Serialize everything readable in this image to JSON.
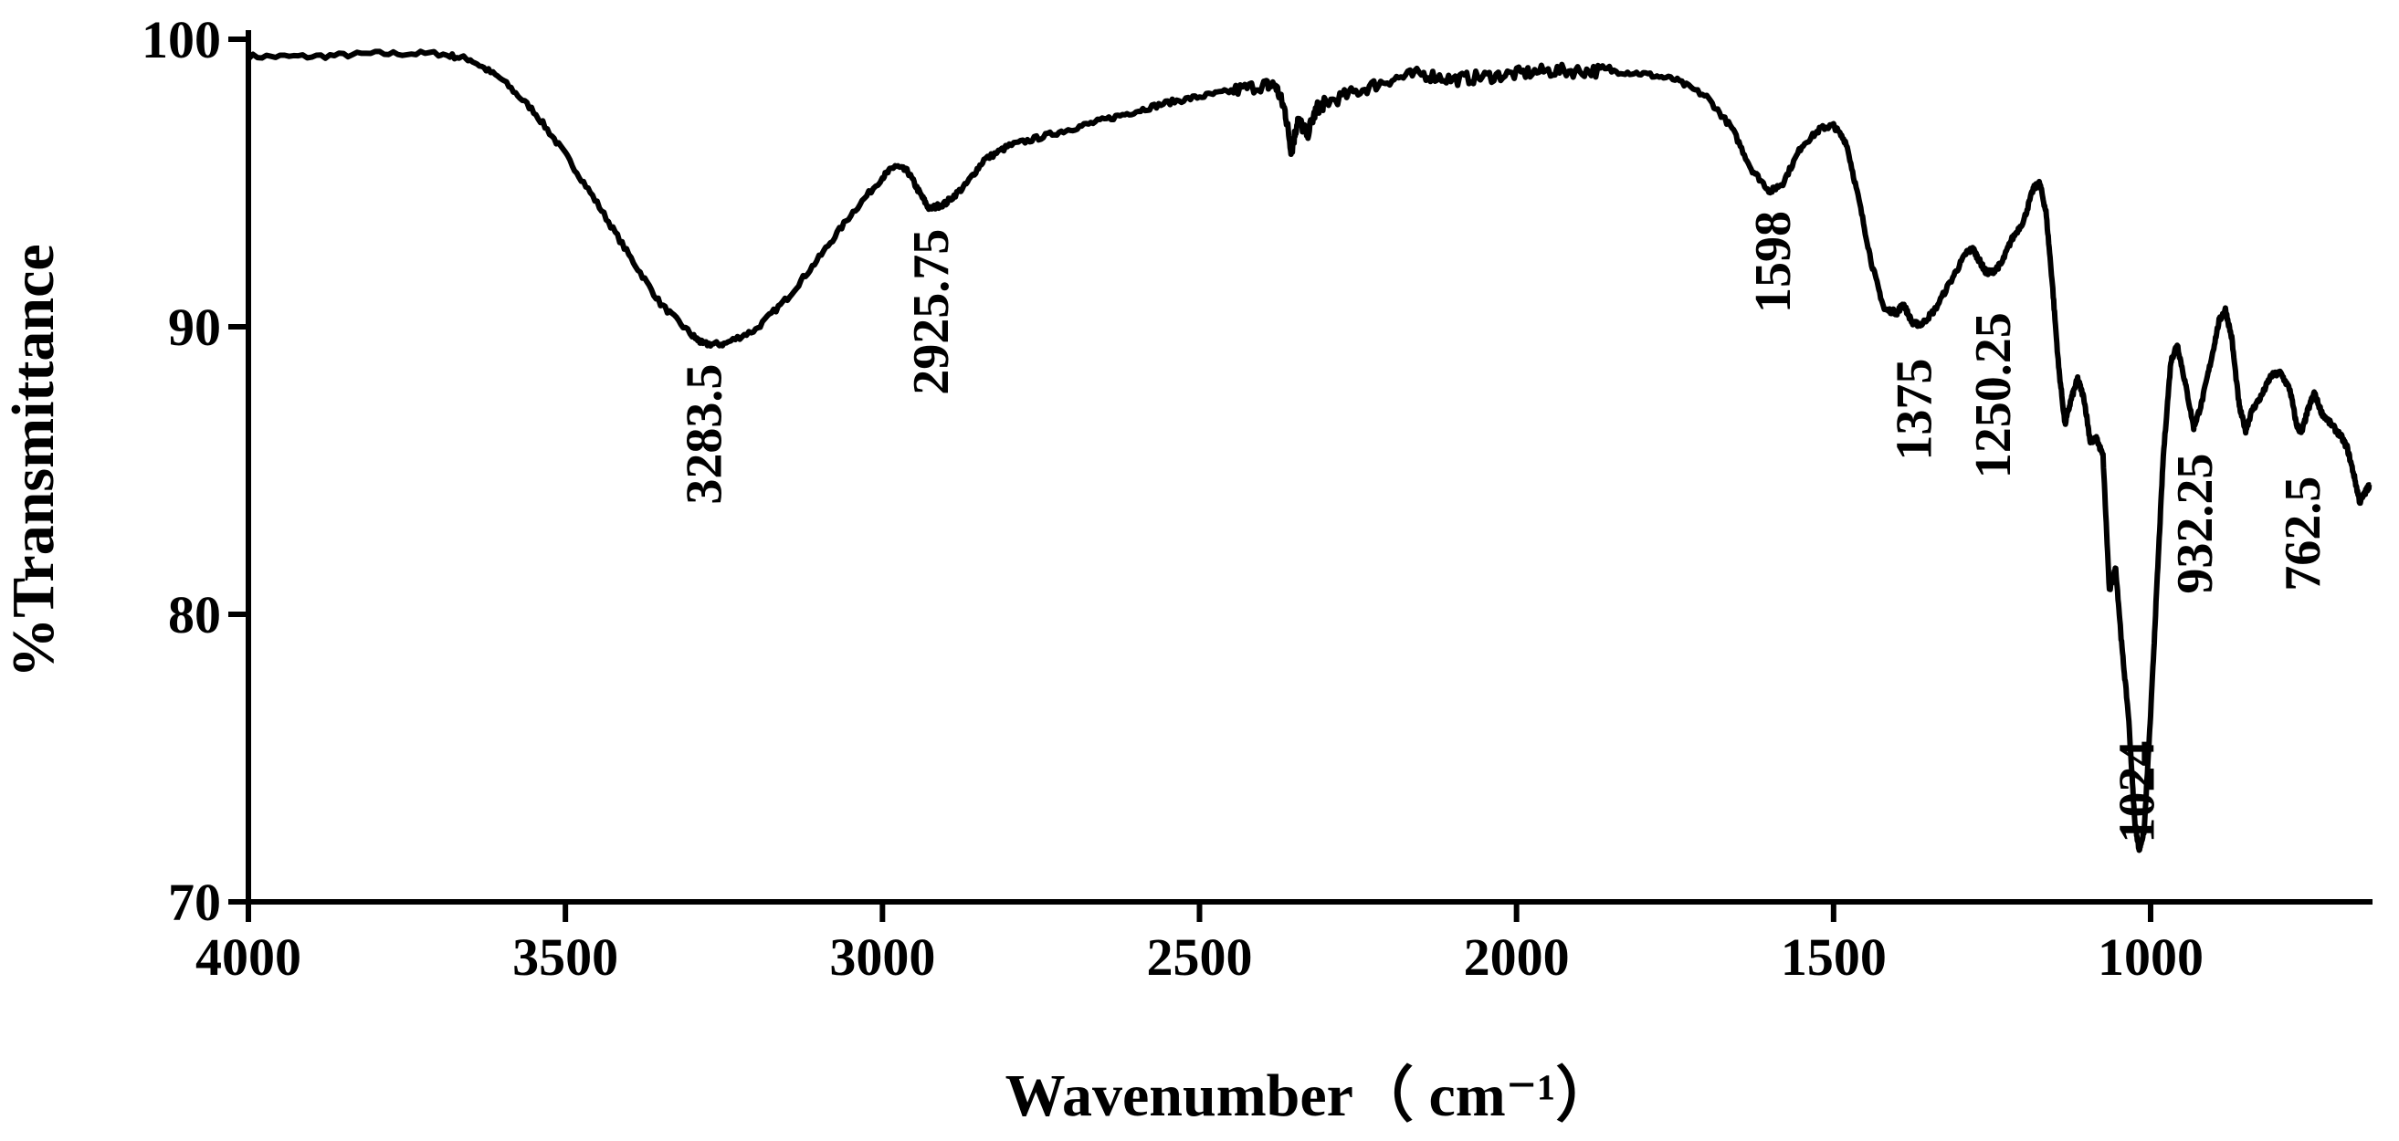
{
  "chart_data": {
    "type": "line",
    "title": "",
    "xlabel": "Wavenumber（ cm⁻¹）",
    "ylabel": "%Transmittance",
    "xlim": [
      4000,
      650
    ],
    "ylim": [
      70,
      100
    ],
    "x_reversed": true,
    "grid": false,
    "legend": "none",
    "line_color": "#000000",
    "xticks": [
      {
        "value": 4000,
        "label": "4000"
      },
      {
        "value": 3500,
        "label": "3500"
      },
      {
        "value": 3000,
        "label": "3000"
      },
      {
        "value": 2500,
        "label": "2500"
      },
      {
        "value": 2000,
        "label": "2000"
      },
      {
        "value": 1500,
        "label": "1500"
      },
      {
        "value": 1000,
        "label": "1000"
      }
    ],
    "yticks": [
      {
        "value": 70,
        "label": "70"
      },
      {
        "value": 80,
        "label": "80"
      },
      {
        "value": 90,
        "label": "90"
      },
      {
        "value": 100,
        "label": "100"
      }
    ],
    "series": [
      {
        "points": [
          [
            4000,
            99.4
          ],
          [
            3900,
            99.4
          ],
          [
            3800,
            99.5
          ],
          [
            3700,
            99.5
          ],
          [
            3650,
            99.3
          ],
          [
            3600,
            98.6
          ],
          [
            3550,
            97.5
          ],
          [
            3500,
            96.0
          ],
          [
            3450,
            94.3
          ],
          [
            3400,
            92.5
          ],
          [
            3350,
            90.8
          ],
          [
            3300,
            89.7
          ],
          [
            3283,
            89.4
          ],
          [
            3250,
            89.4
          ],
          [
            3200,
            89.9
          ],
          [
            3150,
            91.0
          ],
          [
            3100,
            92.4
          ],
          [
            3050,
            93.9
          ],
          [
            3000,
            95.2
          ],
          [
            2980,
            95.6
          ],
          [
            2960,
            95.4
          ],
          [
            2940,
            94.6
          ],
          [
            2926,
            94.1
          ],
          [
            2900,
            94.3
          ],
          [
            2870,
            94.9
          ],
          [
            2840,
            95.8
          ],
          [
            2800,
            96.3
          ],
          [
            2750,
            96.6
          ],
          [
            2700,
            96.9
          ],
          [
            2650,
            97.2
          ],
          [
            2600,
            97.5
          ],
          [
            2550,
            97.8
          ],
          [
            2500,
            98.0
          ],
          [
            2450,
            98.2
          ],
          [
            2400,
            98.4
          ],
          [
            2380,
            98.4
          ],
          [
            2365,
            97.5
          ],
          [
            2355,
            96.1
          ],
          [
            2345,
            97.2
          ],
          [
            2330,
            96.7
          ],
          [
            2315,
            97.6
          ],
          [
            2300,
            97.8
          ],
          [
            2250,
            98.2
          ],
          [
            2200,
            98.6
          ],
          [
            2150,
            98.8
          ],
          [
            2100,
            98.6
          ],
          [
            2050,
            98.7
          ],
          [
            2000,
            98.8
          ],
          [
            1950,
            98.9
          ],
          [
            1900,
            98.9
          ],
          [
            1850,
            98.9
          ],
          [
            1800,
            98.8
          ],
          [
            1750,
            98.6
          ],
          [
            1700,
            98.0
          ],
          [
            1660,
            96.9
          ],
          [
            1630,
            95.5
          ],
          [
            1600,
            94.7
          ],
          [
            1580,
            95.0
          ],
          [
            1550,
            96.3
          ],
          [
            1520,
            96.9
          ],
          [
            1500,
            97.0
          ],
          [
            1480,
            96.4
          ],
          [
            1460,
            94.4
          ],
          [
            1440,
            92.2
          ],
          [
            1420,
            90.6
          ],
          [
            1400,
            90.5
          ],
          [
            1390,
            90.8
          ],
          [
            1375,
            90.1
          ],
          [
            1360,
            90.1
          ],
          [
            1340,
            90.6
          ],
          [
            1310,
            91.8
          ],
          [
            1290,
            92.6
          ],
          [
            1280,
            92.7
          ],
          [
            1270,
            92.3
          ],
          [
            1260,
            91.9
          ],
          [
            1250,
            91.9
          ],
          [
            1235,
            92.2
          ],
          [
            1220,
            93.0
          ],
          [
            1200,
            93.7
          ],
          [
            1185,
            94.8
          ],
          [
            1175,
            95.0
          ],
          [
            1165,
            94.0
          ],
          [
            1155,
            91.5
          ],
          [
            1145,
            88.6
          ],
          [
            1135,
            86.6
          ],
          [
            1125,
            87.5
          ],
          [
            1115,
            88.2
          ],
          [
            1105,
            87.5
          ],
          [
            1095,
            86.0
          ],
          [
            1085,
            86.1
          ],
          [
            1075,
            85.5
          ],
          [
            1065,
            80.8
          ],
          [
            1055,
            81.6
          ],
          [
            1045,
            78.8
          ],
          [
            1035,
            76.5
          ],
          [
            1025,
            72.8
          ],
          [
            1018,
            71.8
          ],
          [
            1010,
            72.5
          ],
          [
            1000,
            76.5
          ],
          [
            990,
            81.0
          ],
          [
            980,
            85.5
          ],
          [
            968,
            88.8
          ],
          [
            958,
            89.4
          ],
          [
            945,
            88.0
          ],
          [
            932,
            86.5
          ],
          [
            920,
            87.3
          ],
          [
            905,
            88.8
          ],
          [
            892,
            90.2
          ],
          [
            882,
            90.6
          ],
          [
            872,
            89.6
          ],
          [
            860,
            87.2
          ],
          [
            850,
            86.4
          ],
          [
            840,
            87.1
          ],
          [
            825,
            87.6
          ],
          [
            810,
            88.3
          ],
          [
            795,
            88.4
          ],
          [
            780,
            87.8
          ],
          [
            770,
            86.6
          ],
          [
            762,
            86.3
          ],
          [
            752,
            87.1
          ],
          [
            742,
            87.7
          ],
          [
            730,
            87.0
          ],
          [
            715,
            86.6
          ],
          [
            700,
            86.2
          ],
          [
            690,
            85.8
          ],
          [
            680,
            84.9
          ],
          [
            670,
            83.9
          ],
          [
            660,
            84.3
          ],
          [
            655,
            84.5
          ]
        ]
      }
    ],
    "annotations": [
      {
        "text": "3283.5",
        "x": 3283.5
      },
      {
        "text": "2925.75",
        "x": 2925.75
      },
      {
        "text": "1598",
        "x": 1598
      },
      {
        "text": "1375",
        "x": 1375
      },
      {
        "text": "1250.25",
        "x": 1250.25
      },
      {
        "text": "1024",
        "x": 1024
      },
      {
        "text": "932.25",
        "x": 932.25
      },
      {
        "text": "762.5",
        "x": 762.5
      }
    ]
  }
}
